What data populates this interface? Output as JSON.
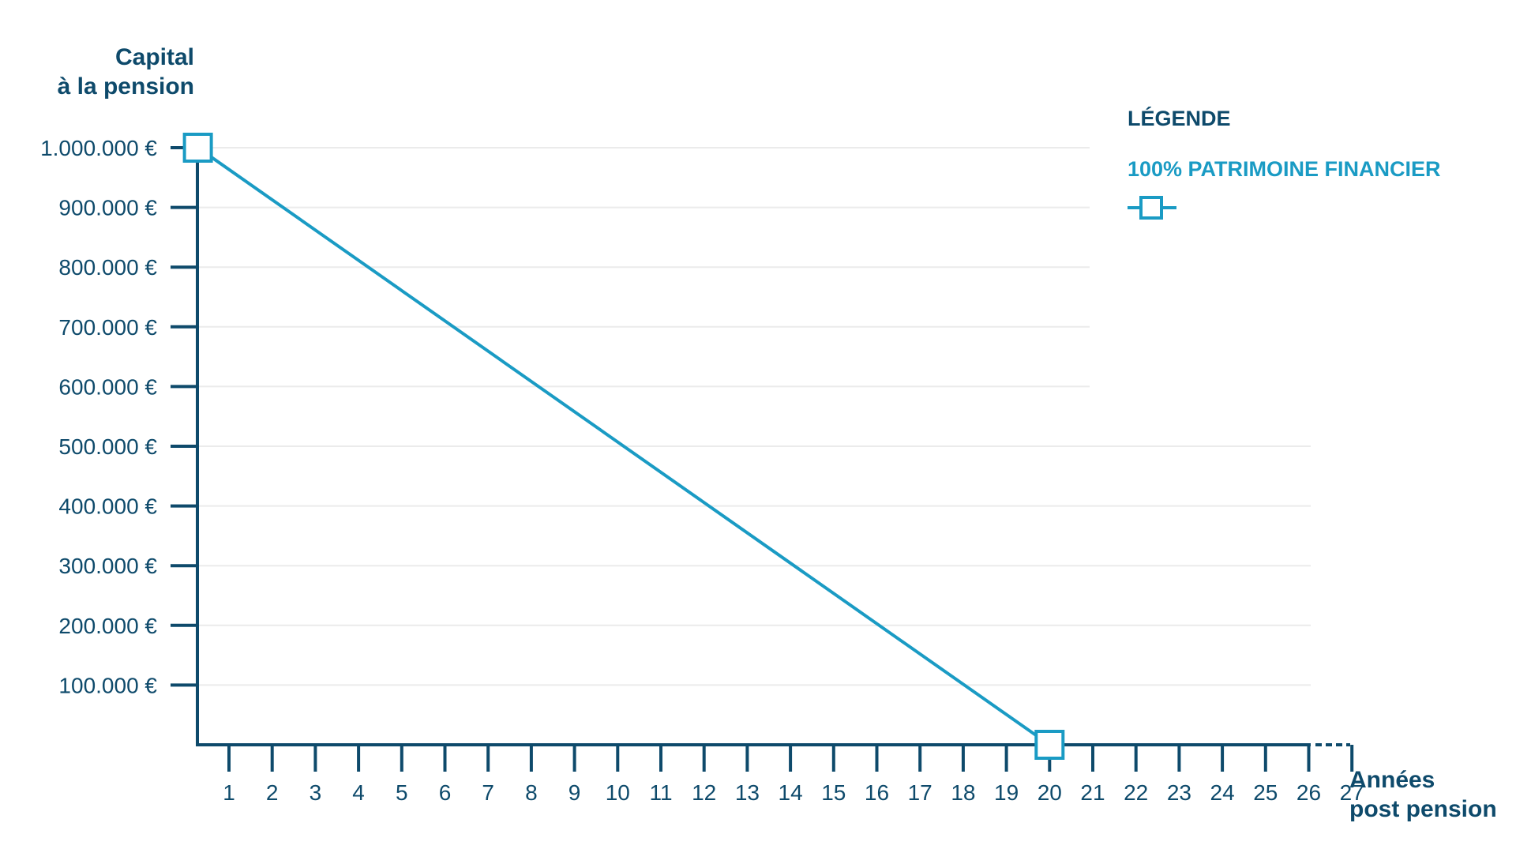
{
  "chart_data": {
    "type": "line",
    "ylabel_lines": [
      "Capital",
      "à la pension"
    ],
    "xlabel_lines": [
      "Années",
      "post pension"
    ],
    "legend": {
      "title": "LÉGENDE",
      "placement": "top-right"
    },
    "y_ticks": [
      {
        "value": 1000000,
        "label": "1.000.000 €"
      },
      {
        "value": 900000,
        "label": "900.000 €"
      },
      {
        "value": 800000,
        "label": "800.000 €"
      },
      {
        "value": 700000,
        "label": "700.000 €"
      },
      {
        "value": 600000,
        "label": "600.000 €"
      },
      {
        "value": 500000,
        "label": "500.000 €"
      },
      {
        "value": 400000,
        "label": "400.000 €"
      },
      {
        "value": 300000,
        "label": "300.000 €"
      },
      {
        "value": 200000,
        "label": "200.000 €"
      },
      {
        "value": 100000,
        "label": "100.000 €"
      }
    ],
    "x_ticks": [
      1,
      2,
      3,
      4,
      5,
      6,
      7,
      8,
      9,
      10,
      11,
      12,
      13,
      14,
      15,
      16,
      17,
      18,
      19,
      20,
      21,
      22,
      23,
      24,
      25,
      26,
      27
    ],
    "xlim": [
      0.28,
      27
    ],
    "ylim": [
      0,
      1000000
    ],
    "grid": true,
    "series": [
      {
        "name": "100% PATRIMOINE FINANCIER",
        "color": "#1a9bc4",
        "marker": "square-hollow",
        "x": [
          0.28,
          20.0
        ],
        "y": [
          1000000,
          0
        ]
      }
    ]
  },
  "colors": {
    "axis": "#0e4a6b",
    "series": "#1a9bc4",
    "grid": "#ebebeb",
    "text": "#0e4a6b"
  }
}
